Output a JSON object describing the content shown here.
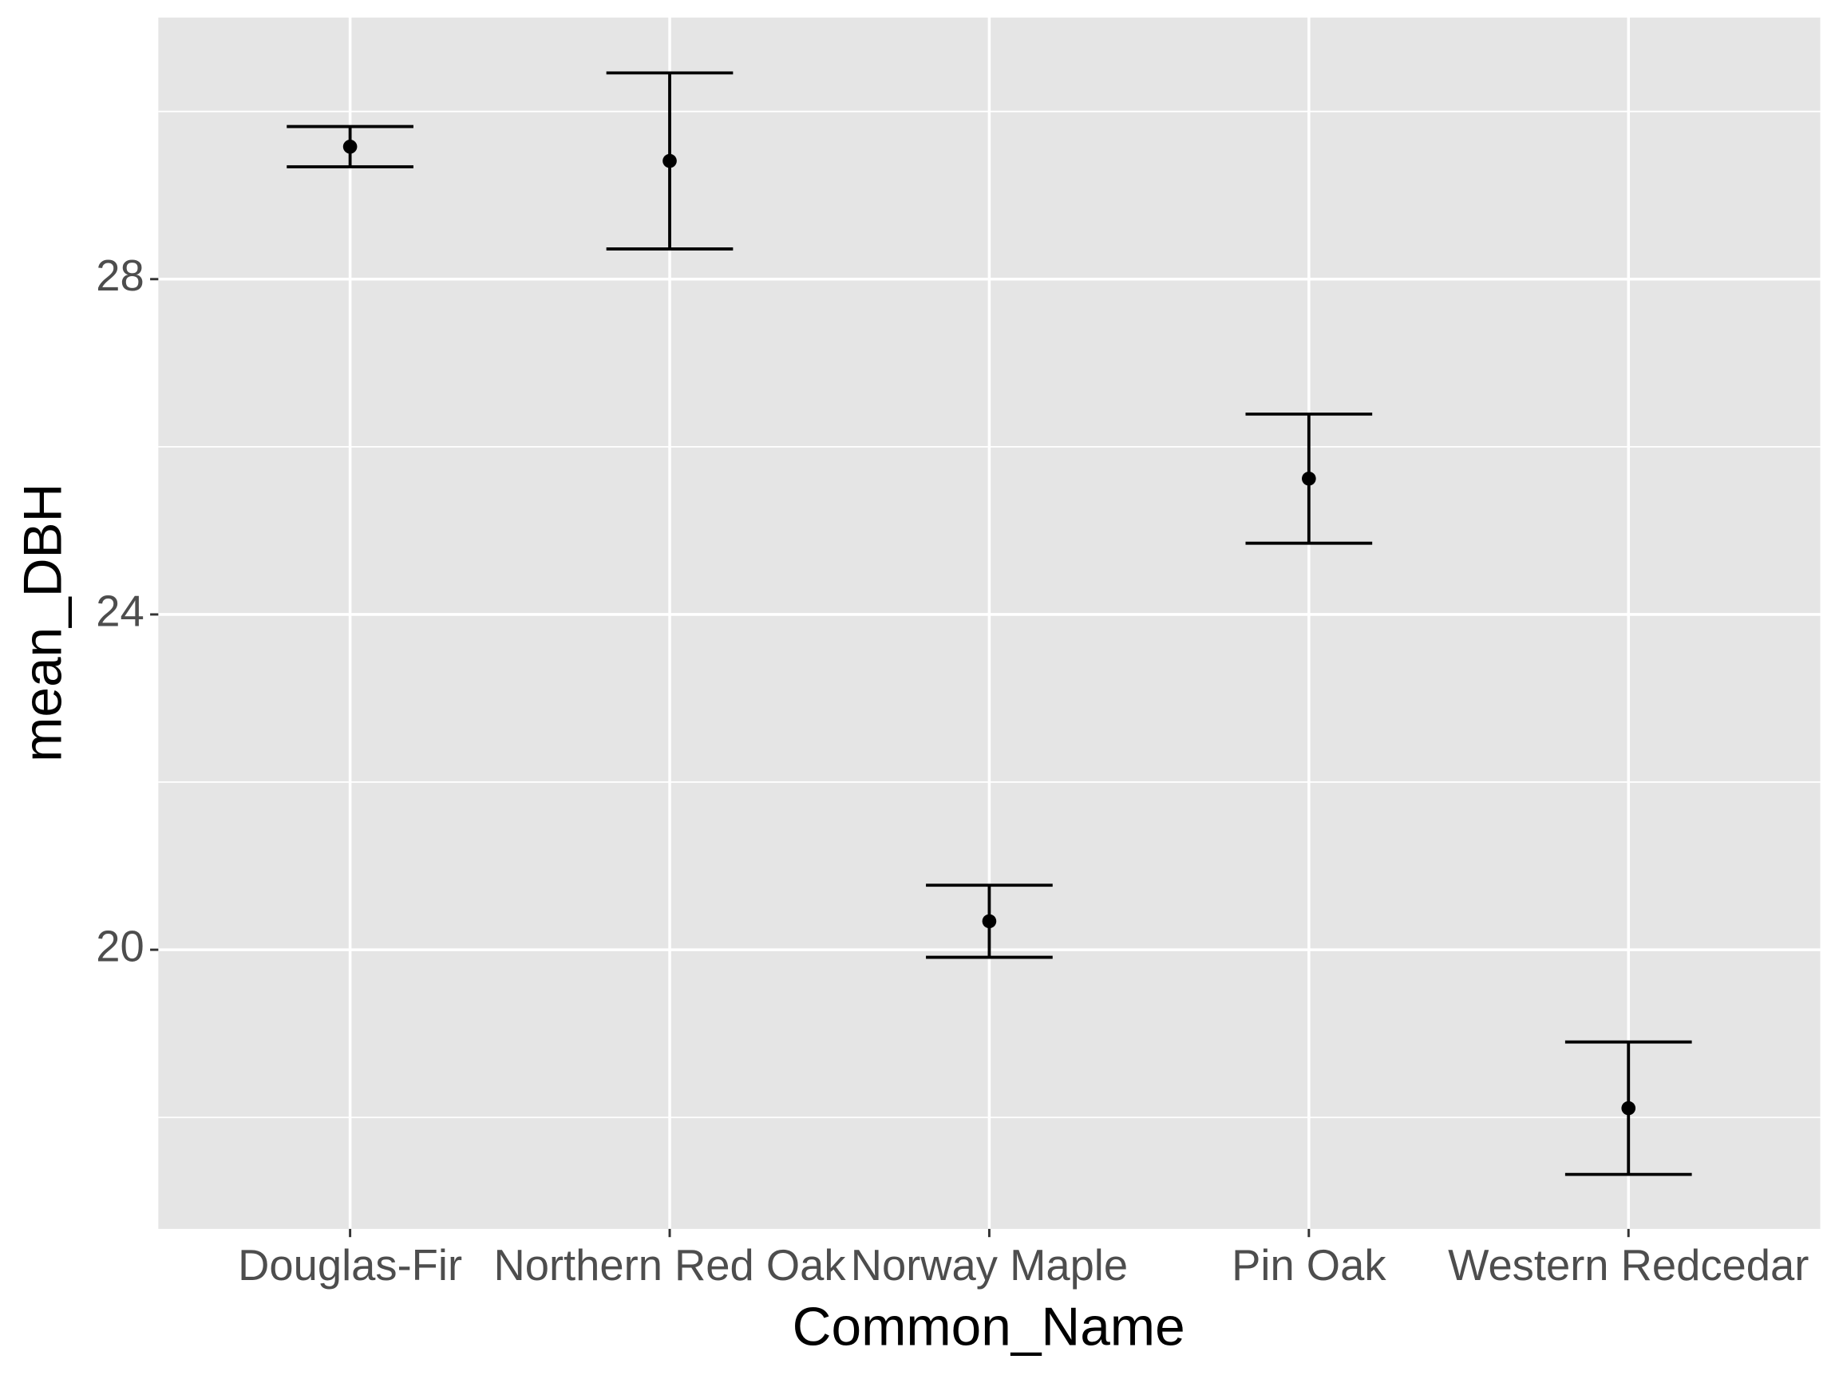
{
  "chart_data": {
    "type": "errorbar",
    "x_label": "Common_Name",
    "y_label": "mean_DBH",
    "categories": [
      "Douglas-Fir",
      "Northern Red Oak",
      "Norway Maple",
      "Pin Oak",
      "Western Redcedar"
    ],
    "values": [
      29.58,
      29.41,
      20.34,
      25.62,
      18.11
    ],
    "errors": [
      0.24,
      1.05,
      0.43,
      0.77,
      0.79
    ],
    "color": "#000000",
    "ylim": [
      16.67,
      31.12
    ],
    "yticks": [
      20,
      24,
      28
    ],
    "y_minor_grid": [
      18,
      22,
      26,
      30
    ],
    "grid": true
  }
}
